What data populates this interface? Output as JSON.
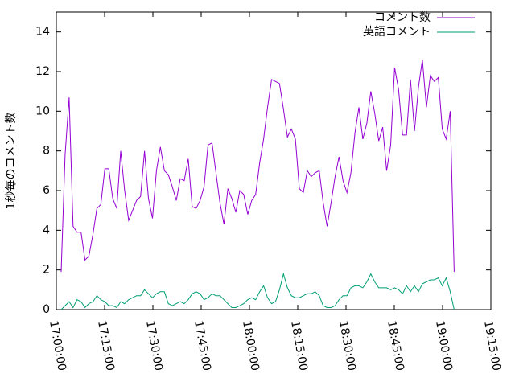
{
  "chart_data": {
    "type": "line",
    "ylabel": "1秒毎のコメント数",
    "ylim": [
      0,
      15
    ],
    "yticks": [
      0,
      2,
      4,
      6,
      8,
      10,
      12,
      14
    ],
    "xlim": [
      "17:00:00",
      "19:15:00"
    ],
    "xticks": [
      "17:00:00",
      "17:15:00",
      "17:30:00",
      "17:45:00",
      "18:00:00",
      "18:15:00",
      "18:30:00",
      "18:45:00",
      "19:00:00",
      "19:15:00"
    ],
    "legend": "top-right",
    "x": [
      "17:01:30",
      "17:02:44",
      "17:03:58",
      "17:05:12",
      "17:06:26",
      "17:07:40",
      "17:08:54",
      "17:10:08",
      "17:11:22",
      "17:12:36",
      "17:13:50",
      "17:15:04",
      "17:16:18",
      "17:17:32",
      "17:18:46",
      "17:20:00",
      "17:21:14",
      "17:22:28",
      "17:23:42",
      "17:24:56",
      "17:26:10",
      "17:27:24",
      "17:28:38",
      "17:29:52",
      "17:31:06",
      "17:32:20",
      "17:33:34",
      "17:34:48",
      "17:36:02",
      "17:37:16",
      "17:38:30",
      "17:39:44",
      "17:40:58",
      "17:42:12",
      "17:43:26",
      "17:44:40",
      "17:45:54",
      "17:47:08",
      "17:48:22",
      "17:49:36",
      "17:50:50",
      "17:52:04",
      "17:53:18",
      "17:54:32",
      "17:55:46",
      "17:57:00",
      "17:58:14",
      "17:59:28",
      "18:00:42",
      "18:01:56",
      "18:03:10",
      "18:04:24",
      "18:05:38",
      "18:06:52",
      "18:08:06",
      "18:09:20",
      "18:10:34",
      "18:11:48",
      "18:13:02",
      "18:14:16",
      "18:15:30",
      "18:16:44",
      "18:17:58",
      "18:19:12",
      "18:20:26",
      "18:21:40",
      "18:22:54",
      "18:24:08",
      "18:25:22",
      "18:26:36",
      "18:27:50",
      "18:29:04",
      "18:30:18",
      "18:31:32",
      "18:32:46",
      "18:34:00",
      "18:35:14",
      "18:36:28",
      "18:37:42",
      "18:38:56",
      "18:40:10",
      "18:41:24",
      "18:42:38",
      "18:43:52",
      "18:45:06",
      "18:46:20",
      "18:47:34",
      "18:48:48",
      "18:50:02",
      "18:51:16",
      "18:52:30",
      "18:53:44",
      "18:54:58",
      "18:56:12",
      "18:57:26",
      "18:58:40",
      "18:59:54",
      "19:01:08",
      "19:02:22",
      "19:03:36"
    ],
    "series": [
      {
        "name": "コメント数",
        "color": "#9400d3",
        "values": [
          1.9,
          7.8,
          10.7,
          4.2,
          3.9,
          3.9,
          2.5,
          2.7,
          3.8,
          5.1,
          5.3,
          7.1,
          7.1,
          5.6,
          5.1,
          8.0,
          6.0,
          4.5,
          5.0,
          5.5,
          5.7,
          8.0,
          5.6,
          4.6,
          7.0,
          8.2,
          7.0,
          6.8,
          6.2,
          5.5,
          6.6,
          6.5,
          7.6,
          5.2,
          5.1,
          5.5,
          6.2,
          8.3,
          8.4,
          6.9,
          5.4,
          4.3,
          6.1,
          5.6,
          4.9,
          6.0,
          5.8,
          4.8,
          5.5,
          5.8,
          7.4,
          8.6,
          10.2,
          11.6,
          11.5,
          11.4,
          10.1,
          8.7,
          9.1,
          8.6,
          6.1,
          5.9,
          7.0,
          6.7,
          6.9,
          7.0,
          5.4,
          4.2,
          5.4,
          6.7,
          7.7,
          6.5,
          5.9,
          6.9,
          8.9,
          10.2,
          8.6,
          9.4,
          11.0,
          9.9,
          8.5,
          9.2,
          7.0,
          8.3,
          12.2,
          11.1,
          8.8,
          8.8,
          11.6,
          9.0,
          11.2,
          12.6,
          10.2,
          11.8,
          11.5,
          11.7,
          9.1,
          8.6,
          10.0,
          1.9
        ]
      },
      {
        "name": "英語コメント",
        "color": "#009e73",
        "values": [
          0.0,
          0.2,
          0.4,
          0.1,
          0.5,
          0.4,
          0.1,
          0.3,
          0.4,
          0.7,
          0.5,
          0.4,
          0.2,
          0.2,
          0.1,
          0.4,
          0.3,
          0.5,
          0.6,
          0.7,
          0.7,
          1.0,
          0.8,
          0.6,
          0.8,
          0.9,
          0.9,
          0.3,
          0.2,
          0.3,
          0.4,
          0.3,
          0.5,
          0.8,
          0.9,
          0.8,
          0.5,
          0.6,
          0.8,
          0.7,
          0.7,
          0.5,
          0.3,
          0.1,
          0.1,
          0.2,
          0.3,
          0.5,
          0.6,
          0.5,
          0.9,
          1.2,
          0.6,
          0.3,
          0.4,
          1.0,
          1.8,
          1.1,
          0.7,
          0.6,
          0.6,
          0.7,
          0.8,
          0.8,
          0.9,
          0.7,
          0.2,
          0.1,
          0.1,
          0.2,
          0.5,
          0.7,
          0.7,
          1.1,
          1.2,
          1.2,
          1.1,
          1.4,
          1.8,
          1.4,
          1.1,
          1.1,
          1.1,
          1.0,
          1.1,
          1.0,
          0.8,
          1.2,
          0.9,
          1.2,
          0.9,
          1.3,
          1.4,
          1.5,
          1.5,
          1.6,
          1.2,
          1.6,
          0.9,
          0.0
        ]
      }
    ]
  }
}
